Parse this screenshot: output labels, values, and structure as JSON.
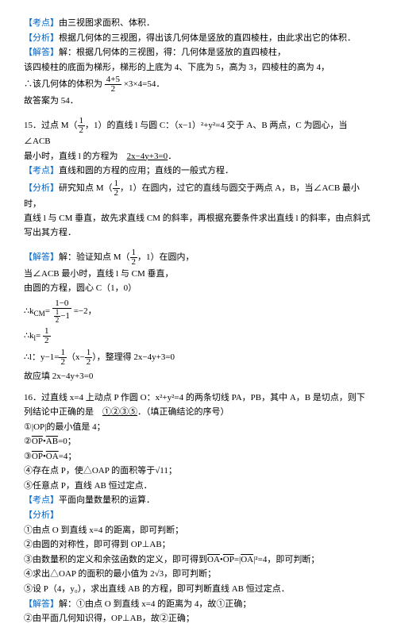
{
  "s1": {
    "kd_tag": "【考点】",
    "kd": "由三视图求面积、体积．",
    "fx_tag": "【分析】",
    "fx": "根据几何体的三视图，得出该几何体是竖放的直四棱柱，由此求出它的体积．",
    "jd_tag": "【解答】",
    "jd1": "解：根据几何体的三视图，得：几何体是竖放的直四棱柱，",
    "jd2": "该四棱柱的底面为梯形，梯形的上底为 4、下底为 5，高为 3，四棱柱的高为 4，",
    "jd3_pre": "∴该几何体的体积为",
    "jd3_num": "4+5",
    "jd3_den": "2",
    "jd3_post": "×3×4=54．",
    "ans": "故答案为 54．"
  },
  "q15": {
    "t1_pre": "15．过点 M（",
    "t1_num": "1",
    "t1_den": "2",
    "t1_mid": "，1）的直线 l 与圆 C：（x−1）²+y²=4 交于 A、B 两点，C 为圆心，当∠ACB",
    "t2": "最小时，直线 l 的方程为",
    "t2_ans": "2x−4y+3=0",
    "t2_post": "．",
    "kd_tag": "【考点】",
    "kd": "直线和圆的方程的应用；直线的一般式方程．",
    "fx_tag": "【分析】",
    "fx1_pre": "研究知点 M（",
    "fx1_num": "1",
    "fx1_den": "2",
    "fx1_post": "，1）在圆内，过它的直线与圆交于两点 A，B，当∠ACB 最小时，",
    "fx2": "直线 l 与 CM 垂直，故先求直线 CM 的斜率，再根据充要条件求出直线 l 的斜率，由点斜式写出其方程．",
    "jd_tag": "【解答】",
    "jd1_pre": "解：验证知点 M（",
    "jd1_num": "1",
    "jd1_den": "2",
    "jd1_post": "，1）在圆内，",
    "jd2": "当∠ACB 最小时，直线 l 与 CM 垂直，",
    "jd3": "由圆的方程，圆心 C（1，0）",
    "kcm_pre": "∴k",
    "kcm_sub": "CM",
    "kcm_eq": "=",
    "kcm_n1": "1−0",
    "kcm_dn": "1",
    "kcm_dd": "2",
    "kcm_d2": "−1",
    "kcm_res": "=−2，",
    "kl_pre": "∴k",
    "kl_sub": "l",
    "kl_eq": "=",
    "kl_n": "1",
    "kl_d": "2",
    "y_pre": "∴l：y−1=",
    "y_n": "1",
    "y_d": "2",
    "y_mid": "（x−",
    "y_n2": "1",
    "y_d2": "2",
    "y_post": "），整理得 2x−4y+3=0",
    "ans": "故应填 2x−4y+3=0"
  },
  "q16": {
    "t1": "16．过直线 x=4 上动点 P 作圆 O：x²+y²=4 的两条切线 PA，PB，其中 A，B 是切点，则下列结论中正确的是",
    "t_ans": "①②③⑤",
    "t_post": "．（填正确结论的序号）",
    "o1": "①|OP|的最小值是 4；",
    "o2_pre": "②",
    "o2_v1": "OP",
    "o2_mid": "•",
    "o2_v2": "AB",
    "o2_post": "=0；",
    "o3_pre": "③",
    "o3_v1": "OP",
    "o3_mid": "•",
    "o3_v2": "OA",
    "o3_post": "=4；",
    "o4": "④存在点 P，使△OAP 的面积等于√11；",
    "o5": "⑤任意点 P，直线 AB 恒过定点．",
    "kd_tag": "【考点】",
    "kd": "平面向量数量积的运算．",
    "fx_tag": "【分析】",
    "fx1": "①由点 O 到直线 x=4 的距离，即可判断；",
    "fx2": "②由圆的对称性，即可得到 OP⊥AB；",
    "fx3_pre": "③由数量积的定义和余弦函数的定义，即可得到",
    "fx3_v1": "OA",
    "fx3_mid1": "•",
    "fx3_v2": "OP",
    "fx3_eq": "=|",
    "fx3_v3": "OA",
    "fx3_post": "|²=4，即可判断；",
    "fx4": "④求出△OAP 的面积的最小值为 2√3，即可判断；",
    "fx5": "⑤设 P（4，y₀），求出直线 AB 的方程，即可判断直线 AB 恒过定点．",
    "jd_tag": "【解答】",
    "jd1": "解：①由点 O 到直线 x=4 的距离为 4，故①正确；",
    "jd2": "②由平面几何知识得，OP⊥AB，故②正确；"
  }
}
